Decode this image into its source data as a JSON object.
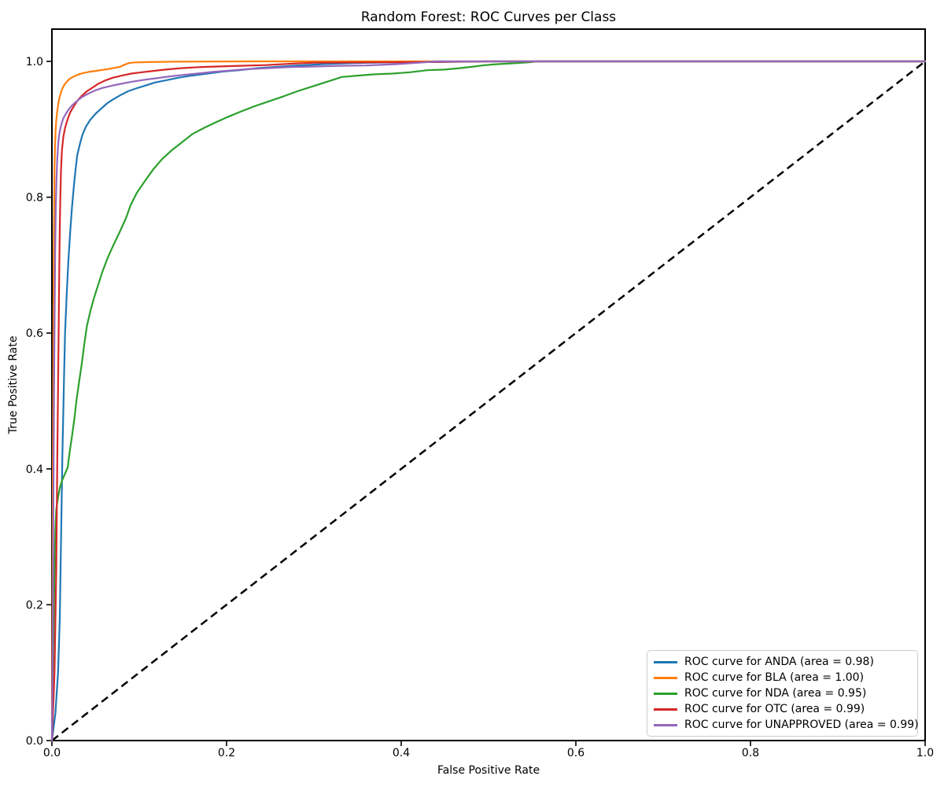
{
  "chart_data": {
    "type": "line",
    "title": "Random Forest: ROC Curves per Class",
    "xlabel": "False Positive Rate",
    "ylabel": "True Positive Rate",
    "xlim": [
      0.0,
      1.0
    ],
    "ylim": [
      0.0,
      1.05
    ],
    "grid": false,
    "legend_position": "lower right",
    "x_ticks": [
      {
        "value": 0.0,
        "label": "0.0"
      },
      {
        "value": 0.2,
        "label": "0.2"
      },
      {
        "value": 0.4,
        "label": "0.4"
      },
      {
        "value": 0.6,
        "label": "0.6"
      },
      {
        "value": 0.8,
        "label": "0.8"
      },
      {
        "value": 1.0,
        "label": "1.0"
      }
    ],
    "y_ticks": [
      {
        "value": 0.0,
        "label": "0.0"
      },
      {
        "value": 0.2,
        "label": "0.2"
      },
      {
        "value": 0.4,
        "label": "0.4"
      },
      {
        "value": 0.6,
        "label": "0.6"
      },
      {
        "value": 0.8,
        "label": "0.8"
      },
      {
        "value": 1.0,
        "label": "1.0"
      }
    ],
    "reference_line": {
      "name": "chance diagonal",
      "style": "dashed",
      "color": "#000000",
      "points": [
        [
          0.0,
          0.0
        ],
        [
          1.0,
          1.0
        ]
      ]
    },
    "series": [
      {
        "name": "ANDA",
        "auc": 0.98,
        "color": "#1f77b4",
        "legend_label": "ROC curve for ANDA (area = 0.98)",
        "points": [
          [
            0,
            0
          ],
          [
            0.004,
            0.04
          ],
          [
            0.007,
            0.1
          ],
          [
            0.009,
            0.18
          ],
          [
            0.01,
            0.26
          ],
          [
            0.011,
            0.34
          ],
          [
            0.012,
            0.42
          ],
          [
            0.013,
            0.48
          ],
          [
            0.014,
            0.54
          ],
          [
            0.015,
            0.6
          ],
          [
            0.017,
            0.66
          ],
          [
            0.019,
            0.71
          ],
          [
            0.021,
            0.75
          ],
          [
            0.023,
            0.785
          ],
          [
            0.025,
            0.815
          ],
          [
            0.027,
            0.84
          ],
          [
            0.029,
            0.862
          ],
          [
            0.032,
            0.878
          ],
          [
            0.035,
            0.892
          ],
          [
            0.039,
            0.904
          ],
          [
            0.044,
            0.914
          ],
          [
            0.05,
            0.923
          ],
          [
            0.056,
            0.93
          ],
          [
            0.063,
            0.938
          ],
          [
            0.07,
            0.944
          ],
          [
            0.078,
            0.95
          ],
          [
            0.087,
            0.956
          ],
          [
            0.096,
            0.96
          ],
          [
            0.106,
            0.964
          ],
          [
            0.118,
            0.969
          ],
          [
            0.13,
            0.972
          ],
          [
            0.145,
            0.976
          ],
          [
            0.16,
            0.979
          ],
          [
            0.178,
            0.982
          ],
          [
            0.196,
            0.985
          ],
          [
            0.215,
            0.987
          ],
          [
            0.235,
            0.99
          ],
          [
            0.258,
            0.992
          ],
          [
            0.282,
            0.994
          ],
          [
            0.31,
            0.996
          ],
          [
            0.345,
            0.9975
          ],
          [
            0.385,
            0.9985
          ],
          [
            0.43,
            0.999
          ],
          [
            0.5,
            1.0
          ],
          [
            1,
            1
          ]
        ]
      },
      {
        "name": "BLA",
        "auc": 1.0,
        "color": "#ff7f0e",
        "legend_label": "ROC curve for BLA (area = 1.00)",
        "points": [
          [
            0,
            0
          ],
          [
            0.0006,
            0.2
          ],
          [
            0.001,
            0.38
          ],
          [
            0.0014,
            0.52
          ],
          [
            0.0018,
            0.64
          ],
          [
            0.0022,
            0.73
          ],
          [
            0.0026,
            0.795
          ],
          [
            0.003,
            0.845
          ],
          [
            0.0036,
            0.878
          ],
          [
            0.0042,
            0.898
          ],
          [
            0.005,
            0.913
          ],
          [
            0.006,
            0.926
          ],
          [
            0.0072,
            0.937
          ],
          [
            0.0086,
            0.946
          ],
          [
            0.01,
            0.953
          ],
          [
            0.012,
            0.96
          ],
          [
            0.014,
            0.965
          ],
          [
            0.017,
            0.97
          ],
          [
            0.02,
            0.974
          ],
          [
            0.024,
            0.977
          ],
          [
            0.029,
            0.98
          ],
          [
            0.035,
            0.9825
          ],
          [
            0.042,
            0.9845
          ],
          [
            0.05,
            0.986
          ],
          [
            0.058,
            0.9875
          ],
          [
            0.066,
            0.989
          ],
          [
            0.072,
            0.9905
          ],
          [
            0.078,
            0.992
          ],
          [
            0.083,
            0.995
          ],
          [
            0.088,
            0.9975
          ],
          [
            0.095,
            0.9985
          ],
          [
            0.11,
            0.999
          ],
          [
            0.14,
            0.9995
          ],
          [
            0.22,
            1.0
          ],
          [
            1,
            1
          ]
        ]
      },
      {
        "name": "NDA",
        "auc": 0.95,
        "color": "#2ca02c",
        "legend_label": "ROC curve for NDA (area = 0.95)",
        "points": [
          [
            0,
            0
          ],
          [
            0.001,
            0.09
          ],
          [
            0.002,
            0.17
          ],
          [
            0.003,
            0.25
          ],
          [
            0.004,
            0.31
          ],
          [
            0.005,
            0.34
          ],
          [
            0.007,
            0.358
          ],
          [
            0.009,
            0.372
          ],
          [
            0.012,
            0.384
          ],
          [
            0.015,
            0.393
          ],
          [
            0.018,
            0.402
          ],
          [
            0.02,
            0.422
          ],
          [
            0.023,
            0.448
          ],
          [
            0.026,
            0.477
          ],
          [
            0.028,
            0.5
          ],
          [
            0.031,
            0.527
          ],
          [
            0.034,
            0.553
          ],
          [
            0.037,
            0.583
          ],
          [
            0.04,
            0.61
          ],
          [
            0.044,
            0.632
          ],
          [
            0.048,
            0.651
          ],
          [
            0.053,
            0.671
          ],
          [
            0.058,
            0.691
          ],
          [
            0.064,
            0.711
          ],
          [
            0.071,
            0.731
          ],
          [
            0.078,
            0.75
          ],
          [
            0.085,
            0.77
          ],
          [
            0.09,
            0.788
          ],
          [
            0.097,
            0.806
          ],
          [
            0.106,
            0.823
          ],
          [
            0.116,
            0.841
          ],
          [
            0.126,
            0.856
          ],
          [
            0.137,
            0.869
          ],
          [
            0.149,
            0.881
          ],
          [
            0.161,
            0.893
          ],
          [
            0.174,
            0.902
          ],
          [
            0.187,
            0.91
          ],
          [
            0.201,
            0.918
          ],
          [
            0.216,
            0.926
          ],
          [
            0.232,
            0.934
          ],
          [
            0.248,
            0.941
          ],
          [
            0.264,
            0.948
          ],
          [
            0.281,
            0.956
          ],
          [
            0.298,
            0.963
          ],
          [
            0.315,
            0.97
          ],
          [
            0.332,
            0.977
          ],
          [
            0.35,
            0.979
          ],
          [
            0.37,
            0.981
          ],
          [
            0.39,
            0.982
          ],
          [
            0.41,
            0.984
          ],
          [
            0.43,
            0.987
          ],
          [
            0.45,
            0.988
          ],
          [
            0.467,
            0.99
          ],
          [
            0.481,
            0.992
          ],
          [
            0.493,
            0.994
          ],
          [
            0.505,
            0.9955
          ],
          [
            0.525,
            0.997
          ],
          [
            0.545,
            0.9985
          ],
          [
            0.556,
            1.0
          ],
          [
            1,
            1
          ]
        ]
      },
      {
        "name": "OTC",
        "auc": 0.99,
        "color": "#d62728",
        "legend_label": "ROC curve for OTC (area = 0.99)",
        "points": [
          [
            0,
            0
          ],
          [
            0.003,
            0.1
          ],
          [
            0.005,
            0.25
          ],
          [
            0.006,
            0.4
          ],
          [
            0.007,
            0.52
          ],
          [
            0.0078,
            0.62
          ],
          [
            0.0085,
            0.7
          ],
          [
            0.009,
            0.755
          ],
          [
            0.0096,
            0.8
          ],
          [
            0.0104,
            0.838
          ],
          [
            0.0114,
            0.868
          ],
          [
            0.013,
            0.888
          ],
          [
            0.015,
            0.902
          ],
          [
            0.018,
            0.915
          ],
          [
            0.021,
            0.925
          ],
          [
            0.025,
            0.934
          ],
          [
            0.029,
            0.942
          ],
          [
            0.034,
            0.949
          ],
          [
            0.04,
            0.956
          ],
          [
            0.046,
            0.961
          ],
          [
            0.053,
            0.967
          ],
          [
            0.061,
            0.972
          ],
          [
            0.07,
            0.976
          ],
          [
            0.08,
            0.979
          ],
          [
            0.091,
            0.982
          ],
          [
            0.103,
            0.984
          ],
          [
            0.116,
            0.986
          ],
          [
            0.13,
            0.988
          ],
          [
            0.148,
            0.99
          ],
          [
            0.168,
            0.9915
          ],
          [
            0.19,
            0.9925
          ],
          [
            0.215,
            0.9935
          ],
          [
            0.245,
            0.9945
          ],
          [
            0.28,
            0.997
          ],
          [
            0.3,
            0.998
          ],
          [
            0.36,
            0.9985
          ],
          [
            0.42,
            0.999
          ],
          [
            0.5,
            1.0
          ],
          [
            1,
            1
          ]
        ]
      },
      {
        "name": "UNAPPROVED",
        "auc": 0.99,
        "color": "#9467bd",
        "legend_label": "ROC curve for UNAPPROVED (area = 0.99)",
        "points": [
          [
            0,
            0
          ],
          [
            0.0008,
            0.12
          ],
          [
            0.0014,
            0.28
          ],
          [
            0.002,
            0.42
          ],
          [
            0.0026,
            0.55
          ],
          [
            0.0032,
            0.65
          ],
          [
            0.0038,
            0.73
          ],
          [
            0.0044,
            0.785
          ],
          [
            0.0052,
            0.825
          ],
          [
            0.006,
            0.855
          ],
          [
            0.007,
            0.876
          ],
          [
            0.008,
            0.89
          ],
          [
            0.0095,
            0.9
          ],
          [
            0.011,
            0.908
          ],
          [
            0.013,
            0.916
          ],
          [
            0.016,
            0.923
          ],
          [
            0.019,
            0.929
          ],
          [
            0.023,
            0.935
          ],
          [
            0.028,
            0.941
          ],
          [
            0.034,
            0.947
          ],
          [
            0.041,
            0.952
          ],
          [
            0.049,
            0.957
          ],
          [
            0.058,
            0.961
          ],
          [
            0.068,
            0.964
          ],
          [
            0.079,
            0.967
          ],
          [
            0.091,
            0.97
          ],
          [
            0.104,
            0.9725
          ],
          [
            0.118,
            0.975
          ],
          [
            0.133,
            0.9775
          ],
          [
            0.149,
            0.98
          ],
          [
            0.166,
            0.982
          ],
          [
            0.184,
            0.9845
          ],
          [
            0.203,
            0.9865
          ],
          [
            0.224,
            0.9885
          ],
          [
            0.247,
            0.99
          ],
          [
            0.272,
            0.9915
          ],
          [
            0.3,
            0.9925
          ],
          [
            0.33,
            0.9935
          ],
          [
            0.36,
            0.994
          ],
          [
            0.395,
            0.996
          ],
          [
            0.425,
            0.9985
          ],
          [
            0.44,
            1.0
          ],
          [
            1,
            1
          ]
        ]
      }
    ]
  }
}
